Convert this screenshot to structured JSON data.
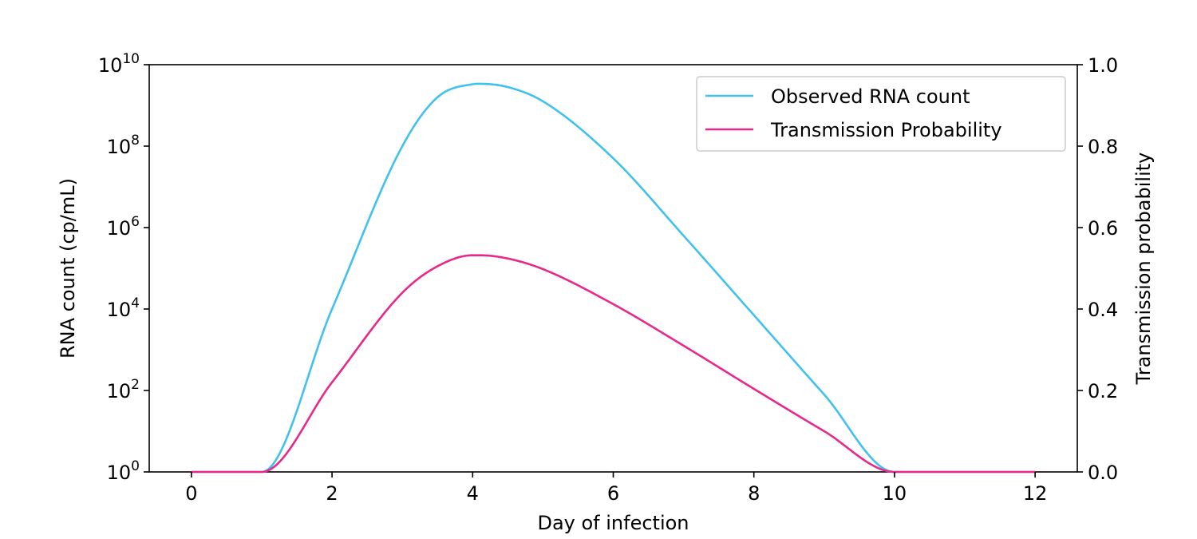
{
  "chart_data": {
    "type": "line",
    "xlabel": "Day of infection",
    "ylabel_left": "RNA count (cp/mL)",
    "ylabel_right": "Transmission probability",
    "xlim": [
      -0.6,
      12.6
    ],
    "x_ticks": [
      0,
      2,
      4,
      6,
      8,
      10,
      12
    ],
    "y_left_scale": "log",
    "y_left_lim": [
      1,
      10000000000
    ],
    "y_left_ticks": [
      {
        "value": 1,
        "base": "10",
        "exp": "0"
      },
      {
        "value": 100,
        "base": "10",
        "exp": "2"
      },
      {
        "value": 10000,
        "base": "10",
        "exp": "4"
      },
      {
        "value": 1000000,
        "base": "10",
        "exp": "6"
      },
      {
        "value": 100000000,
        "base": "10",
        "exp": "8"
      },
      {
        "value": 10000000000,
        "base": "10",
        "exp": "10"
      }
    ],
    "y_right_lim": [
      0,
      1
    ],
    "y_right_ticks": [
      "0.0",
      "0.2",
      "0.4",
      "0.6",
      "0.8",
      "1.0"
    ],
    "legend_position": "top-right",
    "grid": false,
    "series": [
      {
        "name": "Observed RNA count",
        "color": "#41c1ee",
        "axis": "left",
        "x": [
          0,
          1,
          2,
          3,
          3.5,
          4,
          4.1,
          4.5,
          5,
          6,
          7,
          8,
          9,
          10,
          11,
          12
        ],
        "log10_y": [
          0,
          0,
          4,
          8,
          9.2,
          9.52,
          9.53,
          9.45,
          9.1,
          7.7,
          5.8,
          3.85,
          1.9,
          0,
          0,
          0
        ]
      },
      {
        "name": "Transmission Probability",
        "color": "#e8288a",
        "axis": "right",
        "x": [
          0,
          1,
          2,
          3,
          3.5,
          4,
          4.1,
          4.5,
          5,
          6,
          7,
          8,
          9,
          10,
          11,
          12
        ],
        "y": [
          0,
          0,
          0.22,
          0.44,
          0.505,
          0.532,
          0.532,
          0.524,
          0.498,
          0.412,
          0.31,
          0.204,
          0.1,
          0,
          0,
          0
        ]
      }
    ]
  }
}
